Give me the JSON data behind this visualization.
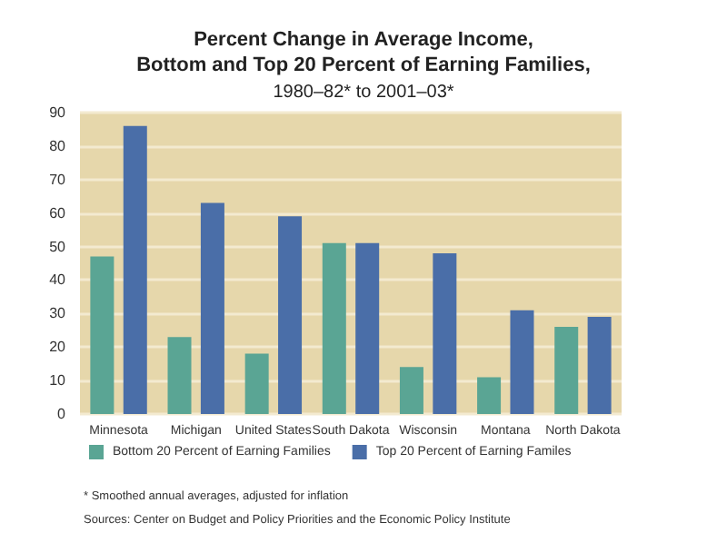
{
  "chart_data": {
    "type": "bar",
    "title": "Percent Change in Average Income,\nBottom and Top 20 Percent of Earning Families,",
    "subtitle": "1980–82* to 2001–03*",
    "categories": [
      "Minnesota",
      "Michigan",
      "United States",
      "South Dakota",
      "Wisconsin",
      "Montana",
      "North Dakota"
    ],
    "series": [
      {
        "name": "Bottom 20 Percent of Earning Families",
        "color": "#5aa594",
        "values": [
          47,
          23,
          18,
          51,
          14,
          11,
          26
        ]
      },
      {
        "name": "Top 20 Percent of Earning Familes",
        "color": "#4a6ea8",
        "values": [
          86,
          63,
          59,
          51,
          48,
          31,
          29
        ]
      }
    ],
    "ylim": [
      0,
      90
    ],
    "yticks": [
      0,
      10,
      20,
      30,
      40,
      50,
      60,
      70,
      80,
      90
    ],
    "grid": "y",
    "legend": "bottom",
    "annotations": [
      "* Smoothed annual averages, adjusted for inflation",
      "Sources: Center on Budget and Policy Priorities and the Economic Policy Institute"
    ]
  }
}
